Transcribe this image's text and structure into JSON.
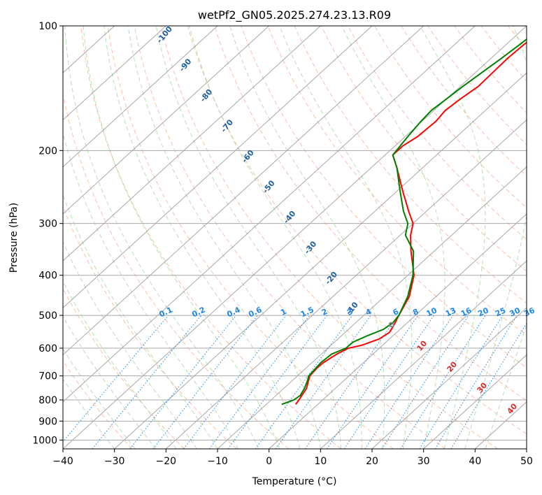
{
  "chart_data": {
    "type": "skew-t",
    "title": "wetPf2_GN05.2025.274.23.13.R09",
    "xlabel": "Temperature (°C)",
    "ylabel": "Pressure (hPa)",
    "xlim": [
      -40,
      50
    ],
    "ylim": [
      1050,
      100
    ],
    "x_ticks": [
      -40,
      -30,
      -20,
      -10,
      0,
      10,
      20,
      30,
      40,
      50
    ],
    "x_tick_labels": [
      "−40",
      "−30",
      "−20",
      "−10",
      "0",
      "10",
      "20",
      "30",
      "40",
      "50"
    ],
    "y_ticks": [
      100,
      200,
      300,
      400,
      500,
      600,
      700,
      800,
      900,
      1000
    ],
    "y_tick_labels": [
      "100",
      "200",
      "300",
      "400",
      "500",
      "600",
      "700",
      "800",
      "900",
      "1000"
    ],
    "grid": true,
    "temperature_profile": {
      "name": "Temperature",
      "color": "#ff0000",
      "points": [
        {
          "p": 820,
          "t": -4.3
        },
        {
          "p": 800,
          "t": -4.6
        },
        {
          "p": 780,
          "t": -5.0
        },
        {
          "p": 750,
          "t": -5.6
        },
        {
          "p": 720,
          "t": -6.8
        },
        {
          "p": 700,
          "t": -7.6
        },
        {
          "p": 670,
          "t": -7.9
        },
        {
          "p": 650,
          "t": -7.8
        },
        {
          "p": 620,
          "t": -7.0
        },
        {
          "p": 600,
          "t": -6.0
        },
        {
          "p": 590,
          "t": -4.0
        },
        {
          "p": 570,
          "t": -2.0
        },
        {
          "p": 550,
          "t": -1.4
        },
        {
          "p": 530,
          "t": -2.0
        },
        {
          "p": 500,
          "t": -3.2
        },
        {
          "p": 450,
          "t": -5.2
        },
        {
          "p": 400,
          "t": -8.8
        },
        {
          "p": 350,
          "t": -14.5
        },
        {
          "p": 320,
          "t": -18.0
        },
        {
          "p": 300,
          "t": -20.0
        },
        {
          "p": 280,
          "t": -23.5
        },
        {
          "p": 250,
          "t": -29.0
        },
        {
          "p": 220,
          "t": -35.0
        },
        {
          "p": 205,
          "t": -38.5
        },
        {
          "p": 195,
          "t": -38.5
        },
        {
          "p": 185,
          "t": -37.6
        },
        {
          "p": 170,
          "t": -37.3
        },
        {
          "p": 160,
          "t": -37.8
        },
        {
          "p": 150,
          "t": -37.3
        },
        {
          "p": 140,
          "t": -36.5
        },
        {
          "p": 120,
          "t": -36.8
        },
        {
          "p": 110,
          "t": -36.5
        },
        {
          "p": 100,
          "t": -35.5
        }
      ]
    },
    "dewpoint_profile": {
      "name": "Dewpoint",
      "color": "#008000",
      "points": [
        {
          "p": 820,
          "t": -7.0
        },
        {
          "p": 800,
          "t": -5.6
        },
        {
          "p": 780,
          "t": -5.3
        },
        {
          "p": 750,
          "t": -6.0
        },
        {
          "p": 720,
          "t": -7.0
        },
        {
          "p": 700,
          "t": -7.8
        },
        {
          "p": 670,
          "t": -8.1
        },
        {
          "p": 650,
          "t": -8.3
        },
        {
          "p": 620,
          "t": -8.0
        },
        {
          "p": 600,
          "t": -6.5
        },
        {
          "p": 580,
          "t": -6.4
        },
        {
          "p": 560,
          "t": -5.0
        },
        {
          "p": 540,
          "t": -3.2
        },
        {
          "p": 520,
          "t": -2.8
        },
        {
          "p": 500,
          "t": -3.2
        },
        {
          "p": 450,
          "t": -5.5
        },
        {
          "p": 400,
          "t": -9.0
        },
        {
          "p": 350,
          "t": -14.0
        },
        {
          "p": 320,
          "t": -19.0
        },
        {
          "p": 300,
          "t": -21.0
        },
        {
          "p": 280,
          "t": -24.5
        },
        {
          "p": 250,
          "t": -29.5
        },
        {
          "p": 220,
          "t": -35.0
        },
        {
          "p": 205,
          "t": -38.5
        },
        {
          "p": 195,
          "t": -39.0
        },
        {
          "p": 185,
          "t": -39.5
        },
        {
          "p": 170,
          "t": -40.2
        },
        {
          "p": 160,
          "t": -40.5
        },
        {
          "p": 150,
          "t": -40.0
        },
        {
          "p": 140,
          "t": -39.5
        },
        {
          "p": 120,
          "t": -38.0
        },
        {
          "p": 110,
          "t": -37.3
        },
        {
          "p": 100,
          "t": -36.6
        }
      ]
    },
    "mixing_ratio_labels": [
      "0.1",
      "0.2",
      "0.4",
      "0.6",
      "1",
      "1.5",
      "2",
      "3",
      "4",
      "6",
      "8",
      "10",
      "13",
      "16",
      "20",
      "25",
      "30",
      "36"
    ],
    "mixing_ratio_values": [
      0.1,
      0.2,
      0.4,
      0.6,
      1,
      1.5,
      2,
      3,
      4,
      6,
      8,
      10,
      13,
      16,
      20,
      25,
      30,
      36
    ],
    "theta_labels": [
      "-100",
      "-90",
      "-80",
      "-70",
      "-60",
      "-50",
      "-40",
      "-30",
      "-20",
      "-10"
    ],
    "theta_values": [
      -100,
      -90,
      -80,
      -70,
      -60,
      -50,
      -40,
      -30,
      -20,
      -10
    ],
    "theta_e_labels": [
      "0",
      "10",
      "20",
      "30",
      "40"
    ],
    "theta_e_values": [
      0,
      10,
      20,
      30,
      40
    ],
    "colors": {
      "temperature": "#ff0000",
      "dewpoint": "#008000",
      "isotherm": "#8c8c8c",
      "isobar": "#a8a8a8",
      "dry_adiabat": "#f5a583",
      "moist_adiabat": "#9fd49a",
      "mixing_ratio": "#1e88e5",
      "theta_label": "#1f5f9e",
      "theta_e_label": "#d32f2f"
    }
  }
}
